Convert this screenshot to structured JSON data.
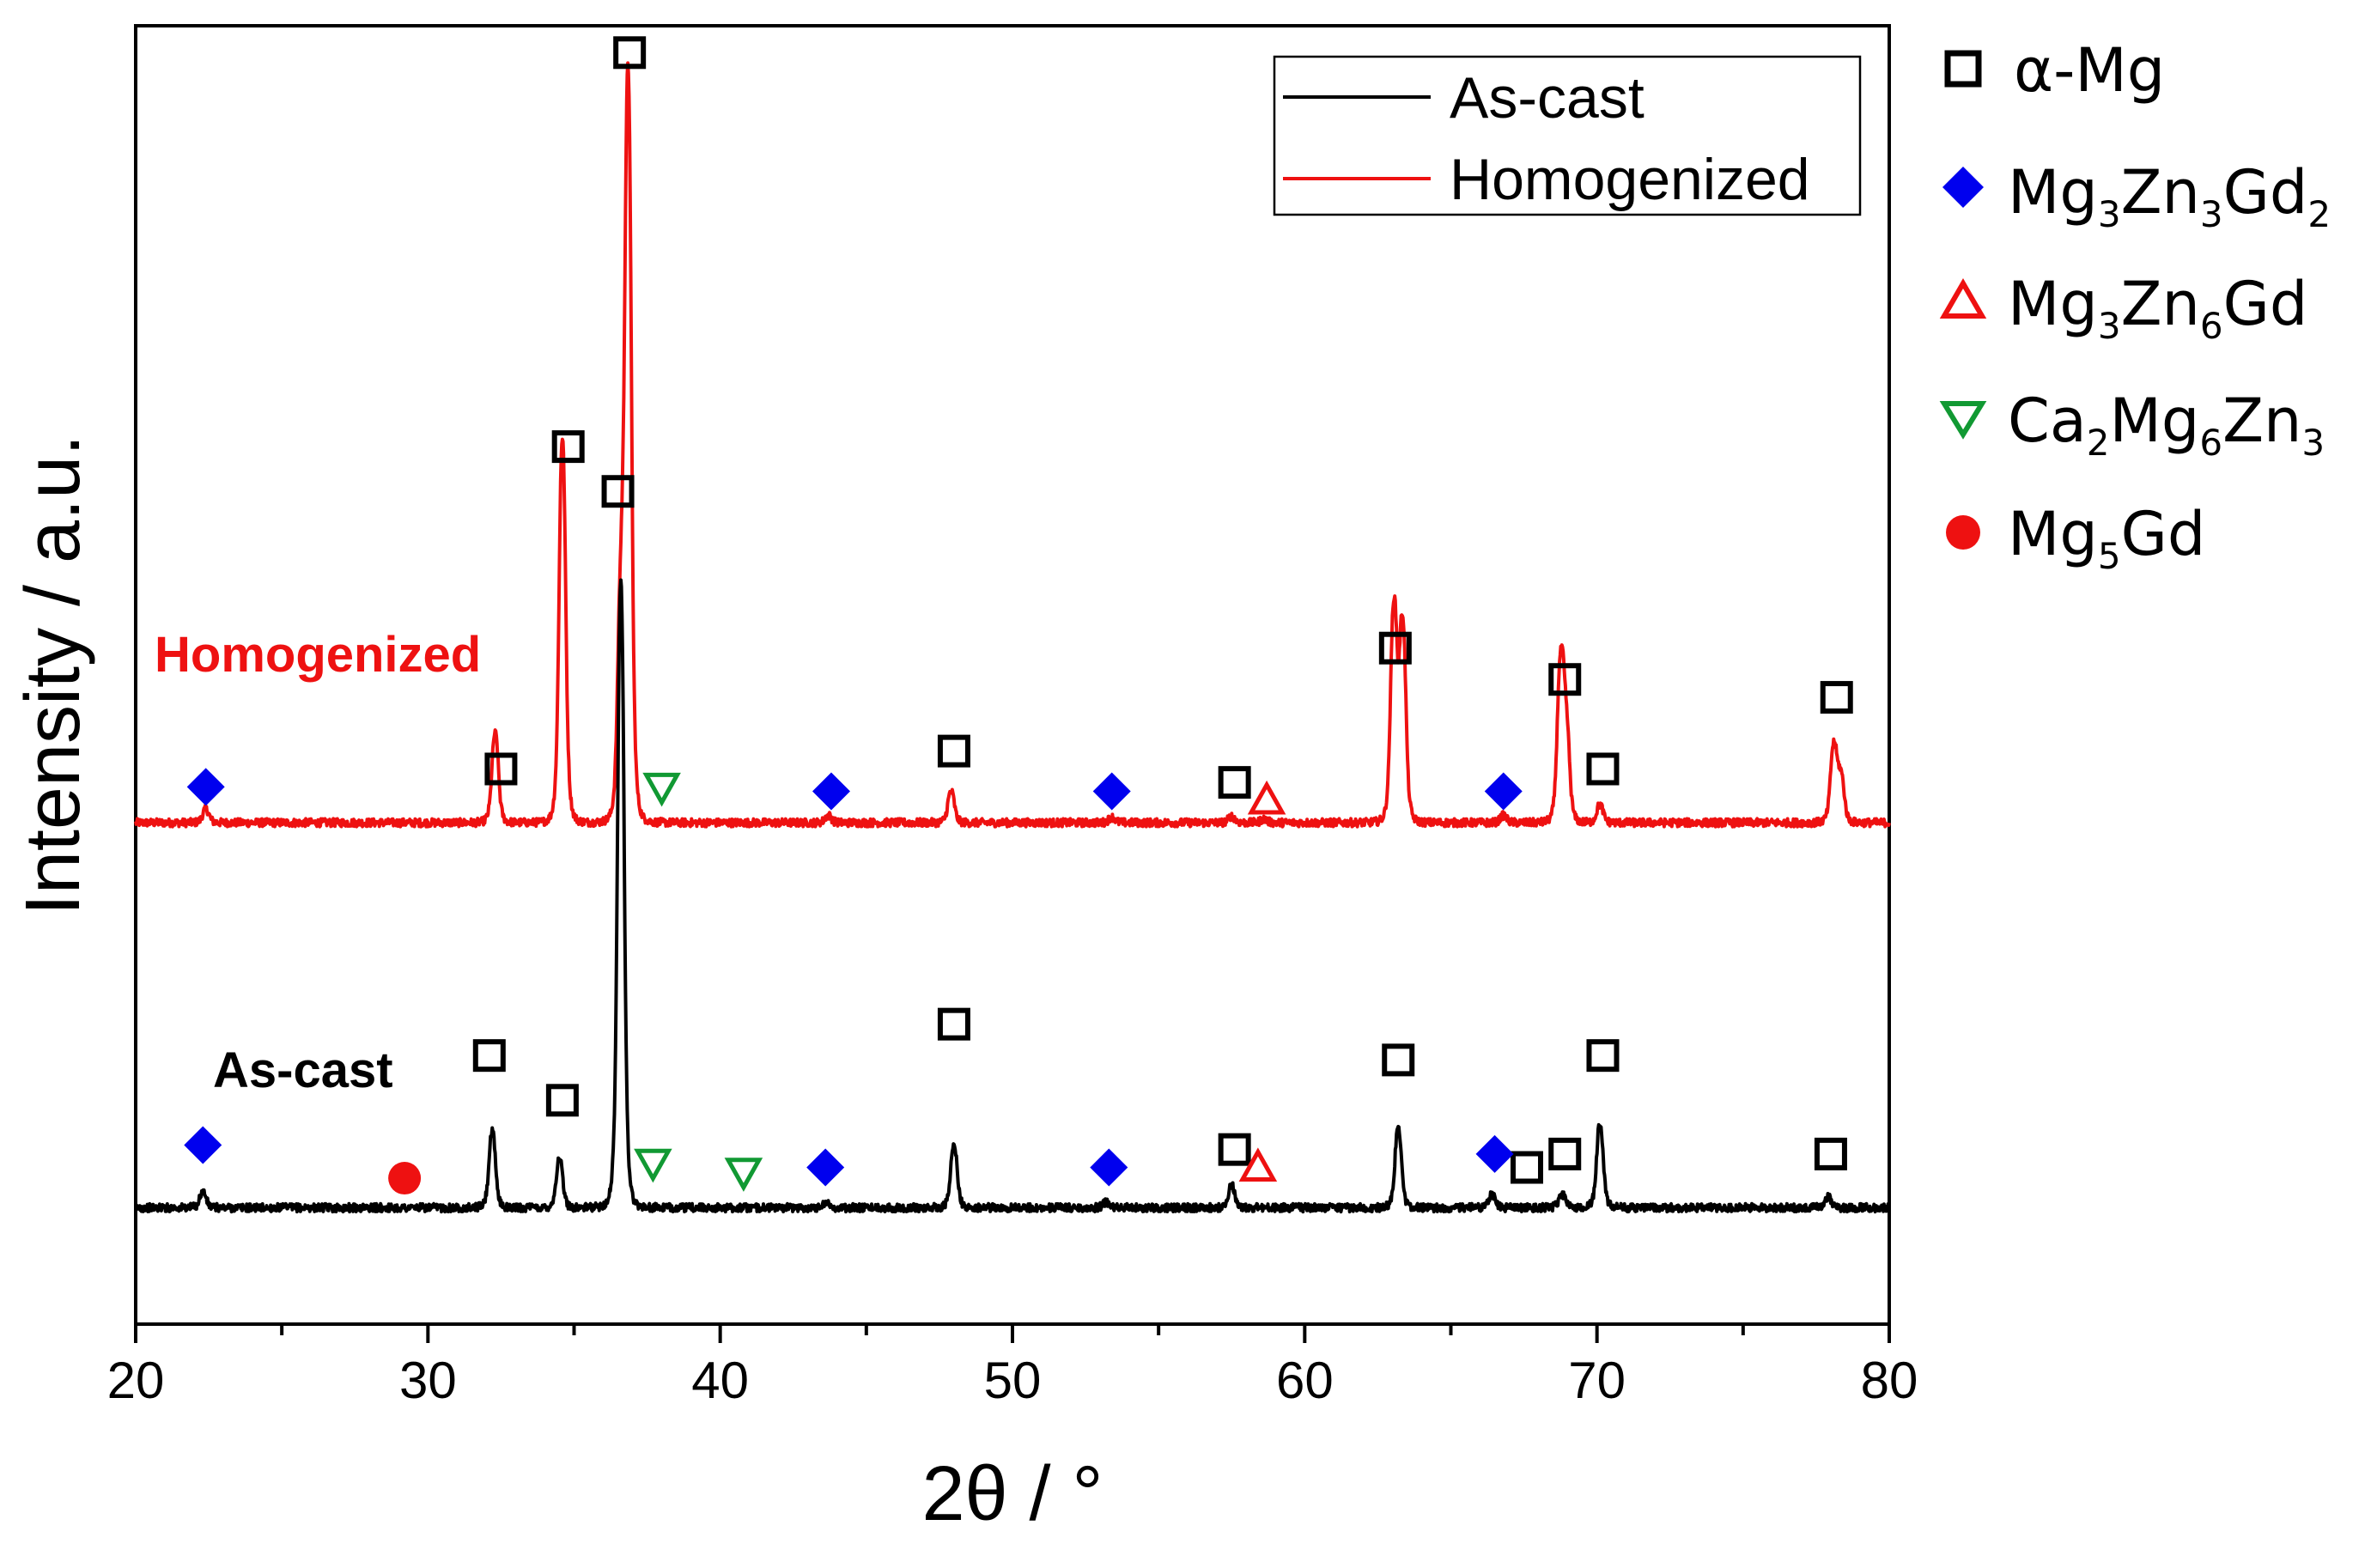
{
  "chart_data": {
    "type": "line",
    "xlabel": "2θ / °",
    "ylabel": "Intensity / a.u.",
    "xlim": [
      20,
      80
    ],
    "x_ticks": [
      "20",
      "30",
      "40",
      "50",
      "60",
      "70",
      "80"
    ],
    "y_ticks": "none",
    "legend": {
      "placement": "top-right",
      "entries": [
        "As-cast",
        "Homogenized"
      ]
    },
    "curve_labels": {
      "homogenized": "Homogenized",
      "ascast": "As-cast"
    },
    "phase_legend": [
      {
        "name": "α-Mg",
        "text": "α-Mg",
        "sub1": "",
        "mid": "",
        "sub2": "",
        "tail": "",
        "sub3": "",
        "marker": "square",
        "color": "#000000"
      },
      {
        "name": "Mg3Zn3Gd2",
        "text": "Mg",
        "sub1": "3",
        "mid": "Zn",
        "sub2": "3",
        "tail": "Gd",
        "sub3": "2",
        "marker": "diamond",
        "color": "#0000ee"
      },
      {
        "name": "Mg3Zn6Gd",
        "text": "Mg",
        "sub1": "3",
        "mid": "Zn",
        "sub2": "6",
        "tail": "Gd",
        "sub3": "",
        "marker": "triangle-up",
        "color": "#ee1111"
      },
      {
        "name": "Ca2Mg6Zn3",
        "text": "Ca",
        "sub1": "2",
        "mid": "Mg",
        "sub2": "6",
        "tail": "Zn",
        "sub3": "3",
        "marker": "triangle-down",
        "color": "#119933"
      },
      {
        "name": "Mg5Gd",
        "text": "Mg",
        "sub1": "5",
        "mid": "Gd",
        "sub2": "",
        "tail": "",
        "sub3": "",
        "marker": "circle",
        "color": "#ee1111"
      }
    ],
    "series": [
      {
        "name": "Homogenized",
        "color": "#ee1111",
        "baseline": 0.56,
        "peaks": [
          [
            22.4,
            0.015
          ],
          [
            32.3,
            0.1
          ],
          [
            34.6,
            0.43
          ],
          [
            36.6,
            0.23
          ],
          [
            36.85,
            0.82
          ],
          [
            43.7,
            0.008
          ],
          [
            47.9,
            0.035
          ],
          [
            53.4,
            0.006
          ],
          [
            57.5,
            0.007
          ],
          [
            58.6,
            0.004
          ],
          [
            63.05,
            0.24
          ],
          [
            63.35,
            0.22
          ],
          [
            66.8,
            0.008
          ],
          [
            68.75,
            0.17
          ],
          [
            68.95,
            0.1
          ],
          [
            70.1,
            0.02
          ],
          [
            78.1,
            0.085
          ],
          [
            78.35,
            0.05
          ]
        ]
      },
      {
        "name": "As-cast",
        "color": "#000000",
        "baseline": 0.13,
        "peaks": [
          [
            22.3,
            0.018
          ],
          [
            32.2,
            0.085
          ],
          [
            34.5,
            0.055
          ],
          [
            36.6,
            0.7
          ],
          [
            43.6,
            0.006
          ],
          [
            48.0,
            0.07
          ],
          [
            53.2,
            0.006
          ],
          [
            57.5,
            0.025
          ],
          [
            63.2,
            0.09
          ],
          [
            66.4,
            0.015
          ],
          [
            68.8,
            0.015
          ],
          [
            70.1,
            0.095
          ],
          [
            77.9,
            0.012
          ]
        ]
      }
    ],
    "phase_markers": [
      {
        "series": "Homogenized",
        "phase": "α-Mg",
        "points": [
          [
            32.5,
            0.62
          ],
          [
            34.8,
            0.98
          ],
          [
            36.9,
            1.42
          ],
          [
            48.0,
            0.64
          ],
          [
            57.6,
            0.605
          ],
          [
            63.1,
            0.755
          ],
          [
            68.9,
            0.72
          ],
          [
            70.2,
            0.62
          ],
          [
            78.2,
            0.7
          ]
        ]
      },
      {
        "series": "Homogenized",
        "phase": "Mg3Zn3Gd2",
        "points": [
          [
            22.4,
            0.6
          ],
          [
            43.8,
            0.595
          ],
          [
            53.4,
            0.595
          ],
          [
            66.8,
            0.595
          ]
        ]
      },
      {
        "series": "Homogenized",
        "phase": "Mg3Zn6Gd",
        "points": [
          [
            58.7,
            0.585
          ]
        ]
      },
      {
        "series": "Homogenized",
        "phase": "Ca2Mg6Zn3",
        "points": [
          [
            38.0,
            0.6
          ]
        ]
      },
      {
        "series": "As-cast",
        "phase": "α-Mg",
        "points": [
          [
            32.1,
            0.3
          ],
          [
            34.6,
            0.25
          ],
          [
            36.5,
            0.93
          ],
          [
            48.0,
            0.335
          ],
          [
            57.6,
            0.195
          ],
          [
            63.2,
            0.295
          ],
          [
            67.6,
            0.175
          ],
          [
            68.9,
            0.19
          ],
          [
            70.2,
            0.3
          ],
          [
            78.0,
            0.19
          ]
        ]
      },
      {
        "series": "As-cast",
        "phase": "Mg3Zn3Gd2",
        "points": [
          [
            22.3,
            0.2
          ],
          [
            43.6,
            0.175
          ],
          [
            53.3,
            0.175
          ],
          [
            66.5,
            0.19
          ]
        ]
      },
      {
        "series": "As-cast",
        "phase": "Mg3Zn6Gd",
        "points": [
          [
            58.4,
            0.175
          ]
        ]
      },
      {
        "series": "As-cast",
        "phase": "Ca2Mg6Zn3",
        "points": [
          [
            37.7,
            0.18
          ],
          [
            40.8,
            0.17
          ]
        ]
      },
      {
        "series": "As-cast",
        "phase": "Mg5Gd",
        "points": [
          [
            29.2,
            0.163
          ]
        ]
      }
    ]
  }
}
